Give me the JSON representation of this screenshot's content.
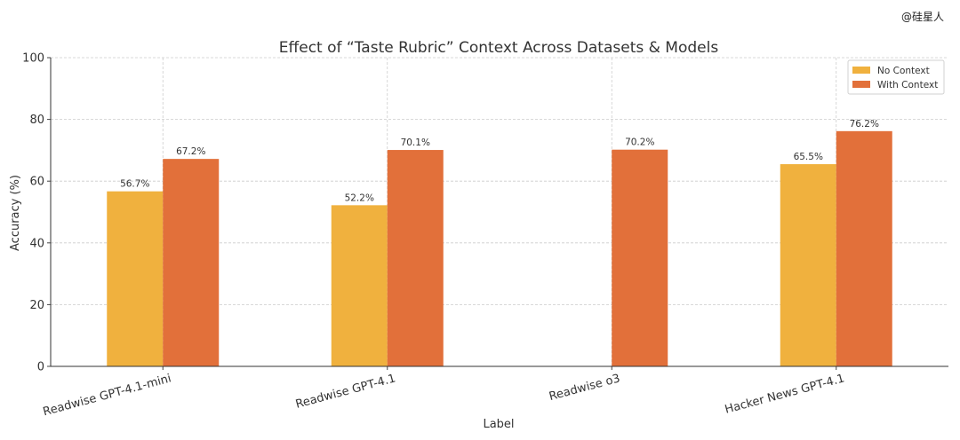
{
  "watermark": "@硅星人",
  "chart_data": {
    "type": "bar",
    "title": "Effect of “Taste Rubric” Context Across Datasets & Models",
    "xlabel": "Label",
    "ylabel": "Accuracy (%)",
    "ylim": [
      0,
      100
    ],
    "yticks": [
      0,
      20,
      40,
      60,
      80,
      100
    ],
    "grid": true,
    "legend_position": "top-right",
    "categories": [
      "Readwise GPT-4.1-mini",
      "Readwise GPT-4.1",
      "Readwise o3",
      "Hacker News GPT-4.1"
    ],
    "series": [
      {
        "name": "No Context",
        "color": "#F0B13E",
        "values": [
          56.7,
          52.2,
          null,
          65.5
        ],
        "labels": [
          "56.7%",
          "52.2%",
          null,
          "65.5%"
        ]
      },
      {
        "name": "With Context",
        "color": "#E2703A",
        "values": [
          67.2,
          70.1,
          70.2,
          76.2
        ],
        "labels": [
          "67.2%",
          "70.1%",
          "70.2%",
          "76.2%"
        ]
      }
    ]
  }
}
